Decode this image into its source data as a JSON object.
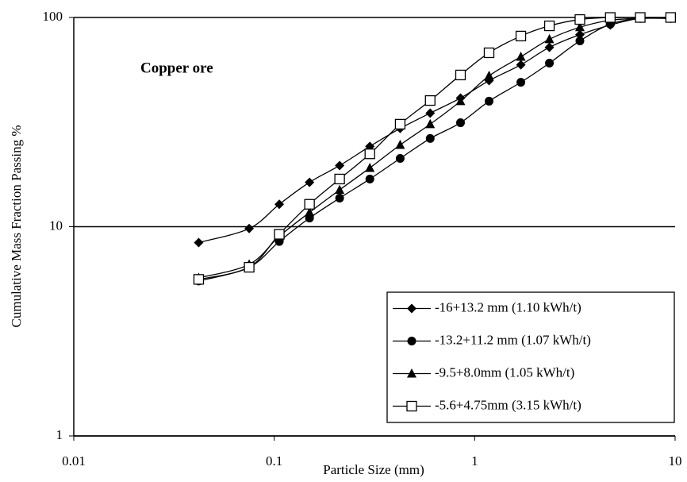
{
  "chart_data": {
    "type": "line",
    "x_label": "Particle Size (mm)",
    "y_label": "Cumulative Mass Fraction Passing %",
    "annotation": "Copper ore",
    "x": [
      0.042,
      0.075,
      0.106,
      0.15,
      0.212,
      0.3,
      0.425,
      0.6,
      0.85,
      1.18,
      1.7,
      2.36,
      3.35,
      4.75,
      6.7,
      9.5
    ],
    "series": [
      {
        "name": "-16+13.2 mm (1.10 kWh/t)",
        "color": "#000000",
        "marker": "diamond",
        "values": [
          8.4,
          9.8,
          12.8,
          16.3,
          19.6,
          24.2,
          29.5,
          34.9,
          41.2,
          49.9,
          59.4,
          72,
          82.8,
          92,
          99,
          99
        ]
      },
      {
        "name": "-13.2+11.2 mm (1.07 kWh/t)",
        "color": "#000000",
        "marker": "circle",
        "values": [
          5.5,
          6.4,
          8.5,
          11,
          13.7,
          16.9,
          21.2,
          26.4,
          31.4,
          39.8,
          49,
          60.5,
          77.3,
          92.9,
          99,
          99
        ]
      },
      {
        "name": "-9.5+8.0mm (1.05 kWh/t)",
        "color": "#000000",
        "marker": "triangle",
        "values": [
          5.7,
          6.6,
          9.0,
          11.7,
          15,
          19.1,
          24.6,
          30.9,
          39.8,
          52.6,
          64.9,
          78.7,
          89.8,
          97,
          99,
          99
        ]
      },
      {
        "name": "-5.6+4.75mm (3.15 kWh/t)",
        "color": "#000000",
        "marker": "square-open",
        "values": [
          5.6,
          6.4,
          9.2,
          12.8,
          16.9,
          22.3,
          30.9,
          40.1,
          53.1,
          67.8,
          81.5,
          91.2,
          97.8,
          100,
          100,
          100
        ]
      }
    ],
    "xlim": [
      0.01,
      10
    ],
    "ylim": [
      1,
      100
    ],
    "xticks": [
      0.01,
      0.1,
      1,
      10
    ],
    "yticks": [
      1,
      10,
      100
    ],
    "xscale": "log",
    "yscale": "log",
    "grid": true,
    "legend": "lower right"
  }
}
